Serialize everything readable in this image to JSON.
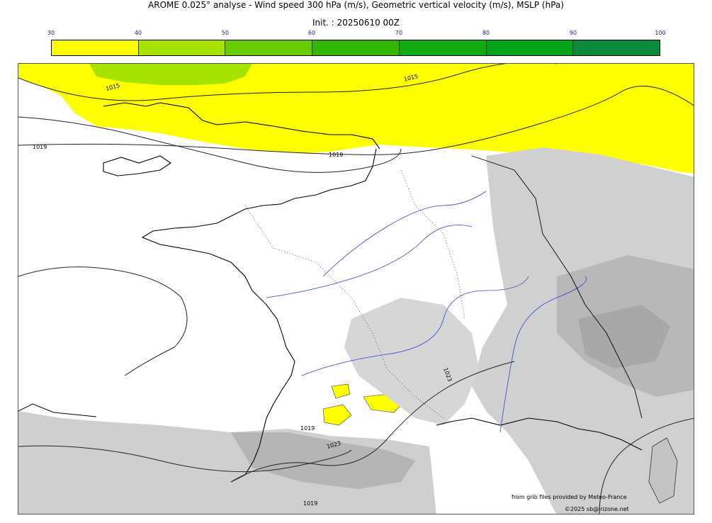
{
  "title": "AROME 0.025° analyse - Wind speed 300 hPa (m/s), Geometric vertical velocity (m/s), MSLP (hPa)",
  "subtitle": "Init. : 20250610 00Z",
  "colorbar": {
    "ticks": [
      "30",
      "40",
      "50",
      "60",
      "70",
      "80",
      "90",
      "100"
    ],
    "colors": [
      "#ffff00",
      "#a6e400",
      "#66cc00",
      "#33b700",
      "#11aa11",
      "#00a31a",
      "#0a8a3a",
      "#0f7a4e"
    ]
  },
  "isobar_labels": [
    "1015",
    "1015",
    "1019",
    "1019",
    "1019",
    "1023",
    "1023",
    "1019"
  ],
  "credit_line1": "from grib files provided by Meteo-France",
  "credit_line2": "©2025 sb@irizone.net"
}
